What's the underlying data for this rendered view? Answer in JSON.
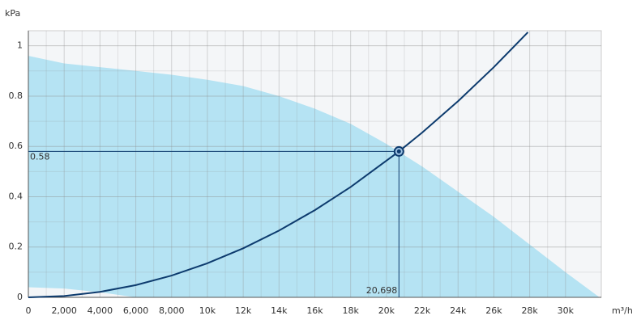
{
  "chart_data": {
    "type": "line",
    "y_label": "kPa",
    "x_label": "m³/h",
    "xlim": [
      0,
      32000
    ],
    "ylim": [
      0,
      1.06
    ],
    "xticks": [
      0,
      {
        "value": 2000,
        "label": "2,000"
      },
      {
        "value": 4000,
        "label": "4,000"
      },
      {
        "value": 6000,
        "label": "6,000"
      },
      {
        "value": 8000,
        "label": "8,000"
      },
      {
        "value": 10000,
        "label": "10k"
      },
      {
        "value": 12000,
        "label": "12k"
      },
      {
        "value": 14000,
        "label": "14k"
      },
      {
        "value": 16000,
        "label": "16k"
      },
      {
        "value": 18000,
        "label": "18k"
      },
      {
        "value": 20000,
        "label": "20k"
      },
      {
        "value": 22000,
        "label": "22k"
      },
      {
        "value": 24000,
        "label": "24k"
      },
      {
        "value": 26000,
        "label": "26k"
      },
      {
        "value": 28000,
        "label": "28k"
      },
      {
        "value": 30000,
        "label": "30k"
      }
    ],
    "yticks": [
      0,
      0.2,
      0.4,
      0.6,
      0.8,
      1
    ],
    "grid": true,
    "area": {
      "color": "#b5e3f3",
      "upper": {
        "x": [
          0,
          2000,
          4000,
          6000,
          8000,
          10000,
          12000,
          14000,
          16000,
          18000,
          20000,
          22000,
          24000,
          26000,
          28000,
          30000,
          31900
        ],
        "values": [
          0.96,
          0.93,
          0.915,
          0.9,
          0.885,
          0.865,
          0.84,
          0.8,
          0.75,
          0.69,
          0.61,
          0.52,
          0.42,
          0.32,
          0.21,
          0.1,
          0
        ]
      },
      "lower": {
        "x": [
          0,
          2000,
          4000,
          6000
        ],
        "values": [
          0.04,
          0.035,
          0.02,
          0
        ]
      }
    },
    "series": [
      {
        "color": "#0d3b6e",
        "x": [
          0,
          2000,
          4000,
          6000,
          8000,
          10000,
          12000,
          14000,
          16000,
          18000,
          20698,
          22000,
          24000,
          26000,
          27900
        ],
        "values": [
          0,
          0.0054,
          0.0217,
          0.0487,
          0.0866,
          0.1354,
          0.1949,
          0.2653,
          0.3466,
          0.4386,
          0.58,
          0.6553,
          0.7799,
          0.9153,
          1.0538
        ]
      }
    ],
    "operating_point": {
      "x": 20698,
      "y": 0.58,
      "x_label": "20,698",
      "y_label": "0.58",
      "color": "#0d3b6e"
    }
  }
}
